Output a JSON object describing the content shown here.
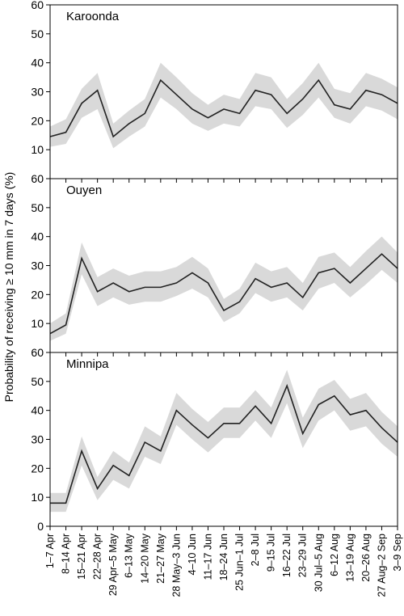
{
  "chart_data": {
    "type": "line",
    "ylabel": "Probability of receiving ≥ 10 mm in 7 days (%)",
    "categories": [
      "1–7 Apr",
      "8–14 Apr",
      "15–21 Apr",
      "22–28 Apr",
      "29 Apr–5 May",
      "6–13 May",
      "14–20 May",
      "21–27 May",
      "28 May–3 Jun",
      "4–10 Jun",
      "11–17 Jun",
      "18–24 Jun",
      "25 Jun–1 Jul",
      "2–8 Jul",
      "9–15 Jul",
      "16–22 Jul",
      "23–29 Jul",
      "30 Jul–5 Aug",
      "6–12 Aug",
      "13–19 Aug",
      "20–26 Aug",
      "27 Aug–2 Sep",
      "3–9 Sep"
    ],
    "y_ticks": [
      0,
      10,
      20,
      30,
      40,
      50,
      60
    ],
    "ylim": [
      0,
      60
    ],
    "colors": {
      "line": "#222222",
      "band": "#d9d9d9",
      "axis": "#000000"
    },
    "panels": [
      {
        "name": "Karoonda",
        "values": [
          14.5,
          16,
          26,
          30.5,
          14.5,
          19,
          22.5,
          34,
          29,
          24,
          21,
          24,
          22.5,
          30.5,
          29,
          22.5,
          27.5,
          34,
          25.5,
          24,
          30.5,
          29,
          26
        ],
        "lower": [
          11,
          12,
          21,
          24,
          10.5,
          14.5,
          18,
          28,
          24,
          19,
          16.5,
          19,
          18,
          25,
          24,
          17.5,
          22,
          28,
          21,
          19,
          25,
          23.5,
          20.5
        ],
        "upper": [
          18,
          20.5,
          31,
          36.5,
          19,
          23.5,
          27.5,
          40,
          35,
          29.5,
          25.5,
          29,
          27.5,
          36.5,
          35,
          27.5,
          33,
          40,
          31,
          29.5,
          36.5,
          34.5,
          31.5
        ]
      },
      {
        "name": "Ouyen",
        "values": [
          6.5,
          9.5,
          32.5,
          21,
          24,
          21,
          22.5,
          22.5,
          24,
          27.5,
          24,
          14.5,
          17.5,
          25.5,
          22.5,
          24,
          19,
          27.5,
          29,
          24,
          29,
          34,
          29
        ],
        "lower": [
          4,
          6.5,
          27,
          16,
          19,
          16.5,
          17.5,
          17.5,
          19.5,
          22,
          19,
          10.5,
          13.5,
          20.5,
          17.5,
          19,
          14.5,
          22,
          24,
          19,
          23.5,
          28.5,
          24
        ],
        "upper": [
          10,
          13.5,
          38,
          26,
          29,
          26.5,
          28,
          28,
          29.5,
          33,
          29,
          18.5,
          22,
          31,
          28,
          29.5,
          24,
          33,
          34.5,
          29.5,
          35,
          40,
          34.5
        ]
      },
      {
        "name": "Minnipa",
        "values": [
          8,
          8,
          26,
          13,
          21,
          17.5,
          29,
          26,
          40,
          35,
          30.5,
          35.5,
          35.5,
          41.5,
          35.5,
          48.5,
          32,
          42,
          45,
          38.5,
          40,
          34,
          29
        ],
        "lower": [
          5,
          5,
          21,
          9,
          16,
          13,
          24,
          21.5,
          35,
          30,
          25.5,
          30.5,
          30.5,
          36.5,
          30.5,
          42.5,
          27,
          36.5,
          40,
          33,
          34.5,
          28.5,
          24
        ],
        "upper": [
          11.5,
          11.5,
          31,
          17,
          26,
          22,
          34.5,
          31,
          46,
          40.5,
          36,
          41,
          41,
          47,
          41,
          54,
          37.5,
          47.5,
          50.5,
          44,
          46,
          39.5,
          34.5
        ]
      }
    ]
  }
}
